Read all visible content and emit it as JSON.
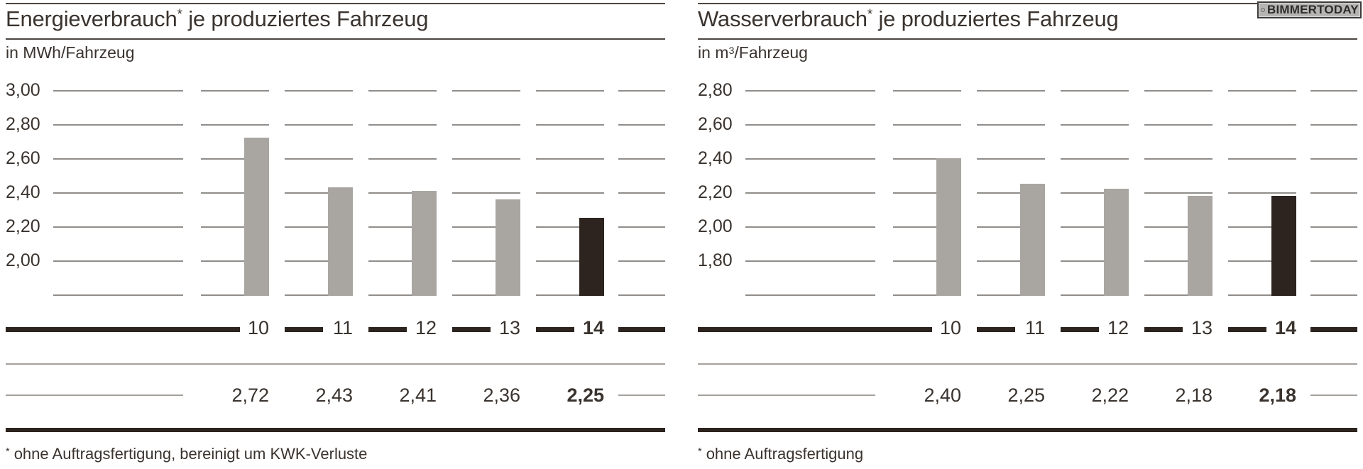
{
  "watermark": {
    "label": "BIMMERTODAY"
  },
  "charts": [
    {
      "title_main": "Energieverbrauch",
      "title_sup": "*",
      "title_rest": " je produziertes Fahrzeug",
      "unit_prefix": "in MWh",
      "unit_sup": "",
      "unit_rest": "/Fahrzeug",
      "footnote_sup": "*",
      "footnote_text": " ohne Auftragsfertigung, bereinigt um KWK-Verluste"
    },
    {
      "title_main": "Wasserverbrauch",
      "title_sup": "*",
      "title_rest": " je produziertes Fahrzeug",
      "unit_prefix": "in m",
      "unit_sup": "3",
      "unit_rest": "/Fahrzeug",
      "footnote_sup": "*",
      "footnote_text": " ohne Auftragsfertigung"
    }
  ],
  "chart_data": [
    {
      "type": "bar",
      "title": "Energieverbrauch* je produziertes Fahrzeug",
      "ylabel": "in MWh/Fahrzeug",
      "xlabel": "",
      "categories": [
        "10",
        "11",
        "12",
        "13",
        "14"
      ],
      "values": [
        2.72,
        2.43,
        2.41,
        2.36,
        2.25
      ],
      "value_labels": [
        "2,72",
        "2,43",
        "2,41",
        "2,36",
        "2,25"
      ],
      "ytick_labels": [
        "3,00",
        "2,80",
        "2,60",
        "2,40",
        "2,20",
        "2,00"
      ],
      "ytick_values": [
        3.0,
        2.8,
        2.6,
        2.4,
        2.2,
        2.0
      ],
      "axis_top": 3.0,
      "axis_baseline": 1.8,
      "grid": true,
      "legend": "none",
      "highlight_index": 4,
      "bar_color": "#a9a6a2",
      "highlight_color": "#2d241f",
      "footnote": "* ohne Auftragsfertigung, bereinigt um KWK-Verluste"
    },
    {
      "type": "bar",
      "title": "Wasserverbrauch* je produziertes Fahrzeug",
      "ylabel": "in m³/Fahrzeug",
      "xlabel": "",
      "categories": [
        "10",
        "11",
        "12",
        "13",
        "14"
      ],
      "values": [
        2.4,
        2.25,
        2.22,
        2.18,
        2.18
      ],
      "value_labels": [
        "2,40",
        "2,25",
        "2,22",
        "2,18",
        "2,18"
      ],
      "ytick_labels": [
        "2,80",
        "2,60",
        "2,40",
        "2,20",
        "2,00",
        "1,80"
      ],
      "ytick_values": [
        2.8,
        2.6,
        2.4,
        2.2,
        2.0,
        1.8
      ],
      "axis_top": 2.8,
      "axis_baseline": 1.6,
      "grid": true,
      "legend": "none",
      "highlight_index": 4,
      "bar_color": "#a9a6a2",
      "highlight_color": "#2d241f",
      "footnote": "* ohne Auftragsfertigung"
    }
  ]
}
